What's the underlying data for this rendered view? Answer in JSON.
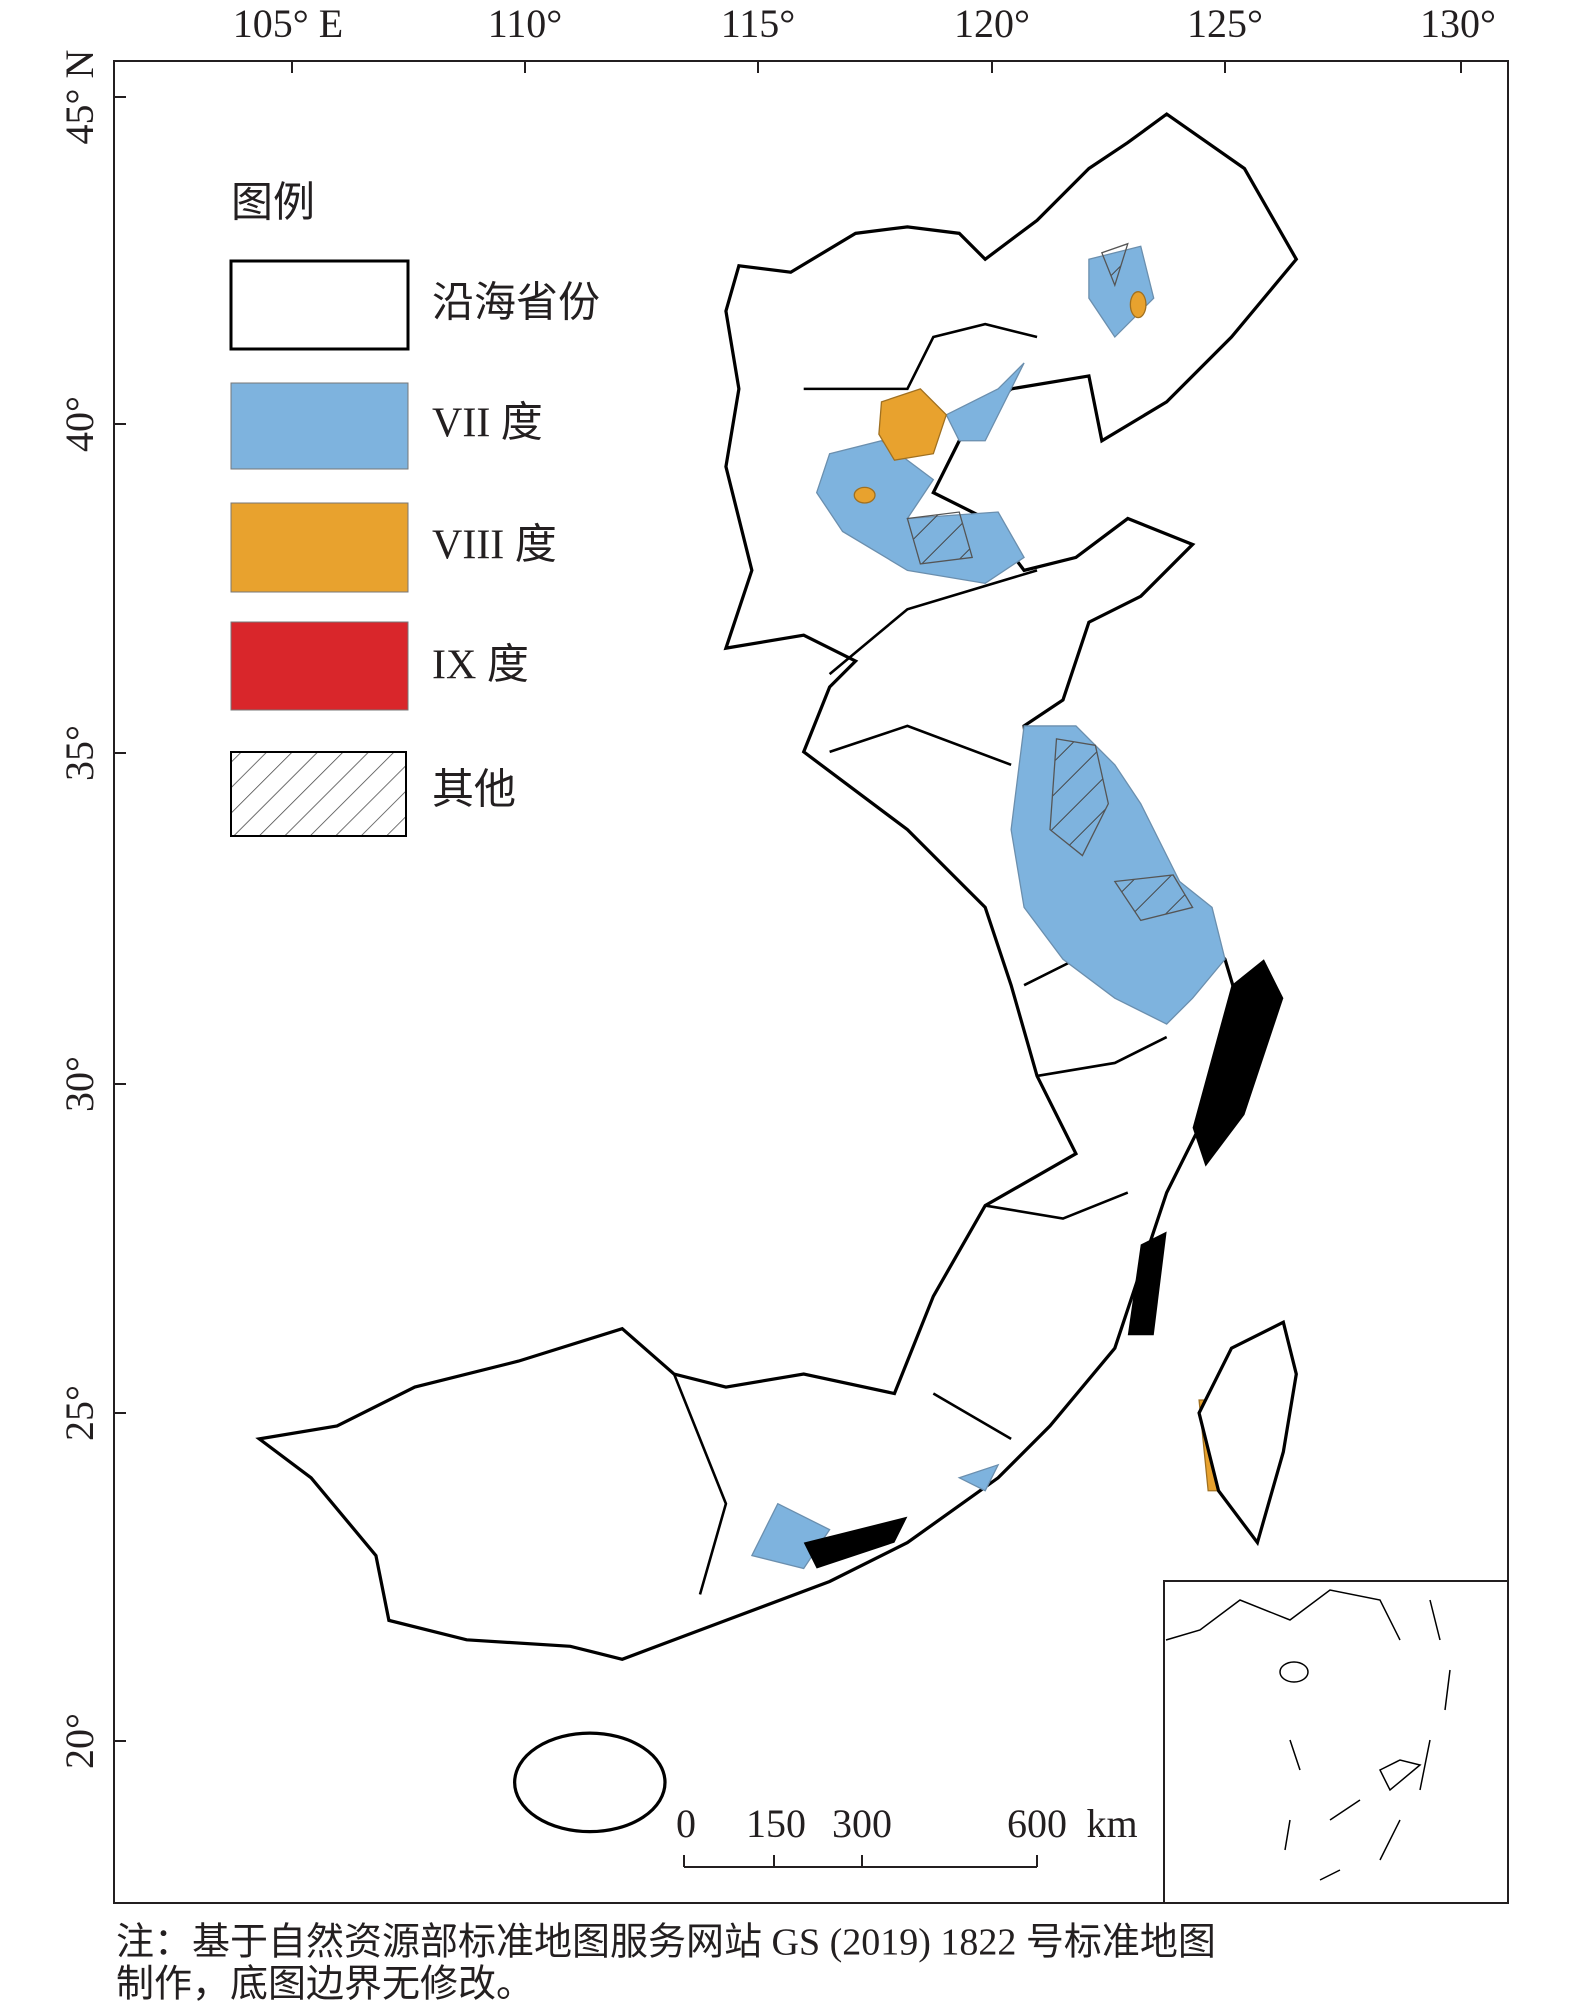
{
  "map": {
    "x_ticks": [
      "105° E",
      "110°",
      "115°",
      "120°",
      "125°",
      "130°"
    ],
    "y_ticks": [
      "45° N",
      "40°",
      "35°",
      "30°",
      "25°",
      "20°"
    ],
    "legend": {
      "title": "图例",
      "items": [
        "沿海省份",
        "VII 度",
        "VIII 度",
        "IX 度",
        "其他"
      ]
    },
    "scale_bar": {
      "labels": [
        "0",
        "150",
        "300",
        "600",
        "km"
      ]
    },
    "note": [
      "注：基于自然资源部标准地图服务网站 GS (2019) 1822 号标准地图",
      "制作，底图边界无修改。"
    ]
  }
}
